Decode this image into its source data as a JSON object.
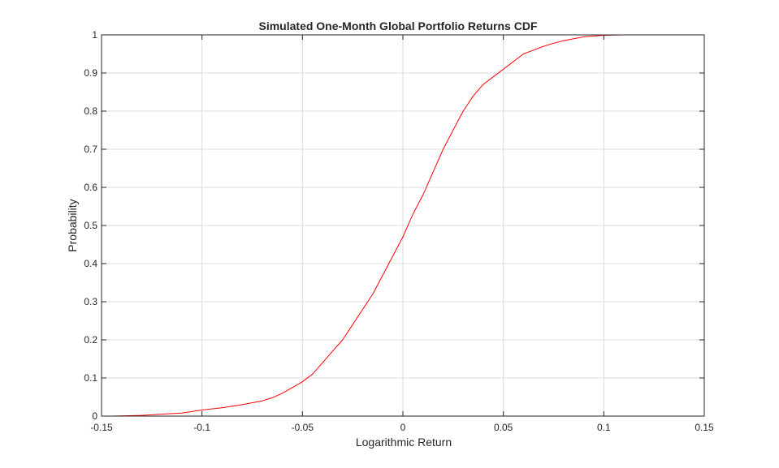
{
  "chart_data": {
    "type": "line",
    "title": "Simulated One-Month Global Portfolio Returns CDF",
    "xlabel": "Logarithmic Return",
    "ylabel": "Probability",
    "xlim": [
      -0.15,
      0.15
    ],
    "ylim": [
      0,
      1
    ],
    "grid": true,
    "legend": "none",
    "line_color": "#ff0000",
    "x_ticks": [
      -0.15,
      -0.1,
      -0.05,
      0,
      0.05,
      0.1,
      0.15
    ],
    "x_tick_labels": [
      "-0.15",
      "-0.1",
      "-0.05",
      "0",
      "0.05",
      "0.1",
      "0.15"
    ],
    "y_ticks": [
      0,
      0.1,
      0.2,
      0.3,
      0.4,
      0.5,
      0.6,
      0.7,
      0.8,
      0.9,
      1
    ],
    "y_tick_labels": [
      "0",
      "0.1",
      "0.2",
      "0.3",
      "0.4",
      "0.5",
      "0.6",
      "0.7",
      "0.8",
      "0.9",
      "1"
    ],
    "series": [
      {
        "x": [
          -0.145,
          -0.13,
          -0.12,
          -0.11,
          -0.1,
          -0.09,
          -0.08,
          -0.07,
          -0.065,
          -0.06,
          -0.055,
          -0.05,
          -0.045,
          -0.04,
          -0.035,
          -0.03,
          -0.025,
          -0.02,
          -0.015,
          -0.01,
          -0.005,
          0,
          0.005,
          0.01,
          0.015,
          0.02,
          0.025,
          0.03,
          0.035,
          0.04,
          0.045,
          0.05,
          0.055,
          0.06,
          0.065,
          0.07,
          0.075,
          0.08,
          0.085,
          0.09,
          0.1,
          0.11,
          0.125
        ],
        "y": [
          0,
          0.002,
          0.005,
          0.008,
          0.016,
          0.022,
          0.03,
          0.04,
          0.048,
          0.06,
          0.075,
          0.09,
          0.11,
          0.14,
          0.17,
          0.2,
          0.24,
          0.28,
          0.32,
          0.37,
          0.42,
          0.47,
          0.53,
          0.58,
          0.64,
          0.7,
          0.75,
          0.8,
          0.84,
          0.87,
          0.89,
          0.91,
          0.93,
          0.95,
          0.96,
          0.97,
          0.978,
          0.985,
          0.99,
          0.995,
          0.999,
          1,
          1
        ]
      }
    ]
  }
}
